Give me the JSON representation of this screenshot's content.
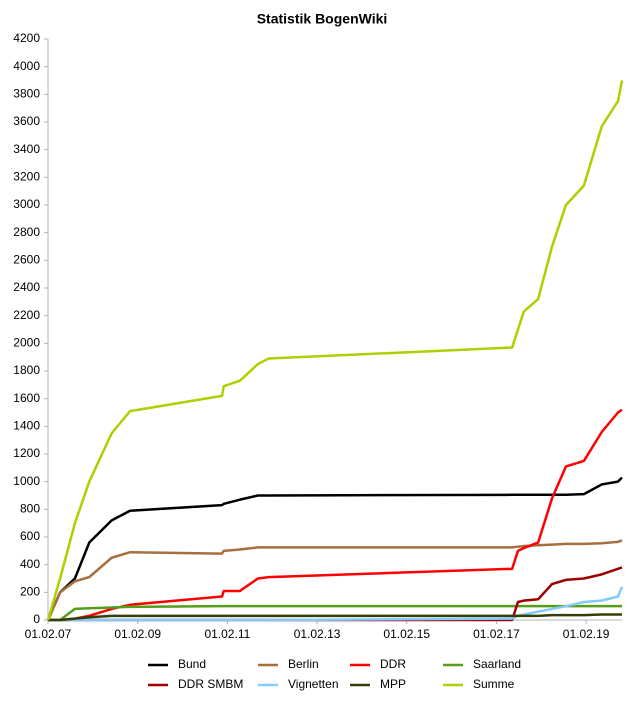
{
  "chart_data": {
    "type": "line",
    "title": "Statistik BogenWiki",
    "x": [
      2007.08,
      2007.35,
      2007.68,
      2008.0,
      2008.5,
      2008.91,
      2010.96,
      2011.0,
      2011.36,
      2011.76,
      2012.0,
      2017.43,
      2017.56,
      2017.69,
      2018.01,
      2018.32,
      2018.63,
      2019.03,
      2019.43,
      2019.79,
      2019.88
    ],
    "series": [
      {
        "name": "Bund",
        "color": "#000000",
        "values": [
          0,
          200,
          300,
          560,
          720,
          790,
          830,
          840,
          870,
          900,
          900,
          905,
          905,
          905,
          905,
          905,
          905,
          910,
          980,
          1000,
          1030
        ]
      },
      {
        "name": "Berlin",
        "color": "#a66f3e",
        "values": [
          0,
          200,
          280,
          310,
          450,
          490,
          480,
          500,
          510,
          525,
          525,
          525,
          530,
          535,
          540,
          545,
          550,
          550,
          555,
          565,
          575
        ]
      },
      {
        "name": "DDR",
        "color": "#ff0000",
        "values": [
          0,
          0,
          10,
          30,
          80,
          110,
          170,
          210,
          210,
          300,
          310,
          370,
          500,
          520,
          560,
          880,
          1110,
          1150,
          1360,
          1500,
          1520
        ]
      },
      {
        "name": "Saarland",
        "color": "#579d1c",
        "values": [
          0,
          0,
          80,
          85,
          90,
          95,
          100,
          100,
          100,
          100,
          100,
          100,
          100,
          100,
          100,
          100,
          100,
          100,
          100,
          100,
          100
        ]
      },
      {
        "name": "DDR SMBM",
        "color": "#a00000",
        "values": [
          0,
          0,
          0,
          0,
          0,
          0,
          0,
          0,
          0,
          0,
          0,
          0,
          130,
          140,
          150,
          260,
          290,
          300,
          330,
          370,
          380
        ]
      },
      {
        "name": "Vignetten",
        "color": "#83caff",
        "values": [
          0,
          0,
          0,
          0,
          0,
          0,
          0,
          0,
          0,
          0,
          0,
          10,
          30,
          40,
          60,
          80,
          100,
          130,
          140,
          170,
          240
        ]
      },
      {
        "name": "MPP",
        "color": "#314004",
        "values": [
          0,
          0,
          10,
          20,
          30,
          30,
          30,
          30,
          30,
          30,
          30,
          30,
          30,
          30,
          30,
          35,
          35,
          35,
          40,
          40,
          40
        ]
      },
      {
        "name": "Summe",
        "color": "#aecf00",
        "values": [
          0,
          300,
          700,
          1000,
          1350,
          1510,
          1620,
          1690,
          1730,
          1850,
          1890,
          1970,
          2100,
          2230,
          2320,
          2700,
          3000,
          3140,
          3570,
          3750,
          3900
        ]
      }
    ],
    "xlim": [
      2007.08,
      2019.88
    ],
    "xticks": [
      {
        "value": 2007.08,
        "label": "01.02.07"
      },
      {
        "value": 2009.08,
        "label": "01.02.09"
      },
      {
        "value": 2011.08,
        "label": "01.02.11"
      },
      {
        "value": 2013.08,
        "label": "01.02.13"
      },
      {
        "value": 2015.08,
        "label": "01.02.15"
      },
      {
        "value": 2017.08,
        "label": "01.02.17"
      },
      {
        "value": 2019.08,
        "label": "01.02.19"
      }
    ],
    "ylim": [
      0,
      4200
    ],
    "yticks": [
      0,
      200,
      400,
      600,
      800,
      1000,
      1200,
      1400,
      1600,
      1800,
      2000,
      2200,
      2400,
      2600,
      2800,
      3000,
      3200,
      3400,
      3600,
      3800,
      4000,
      4200
    ],
    "grid": false,
    "legend": "bottom"
  }
}
